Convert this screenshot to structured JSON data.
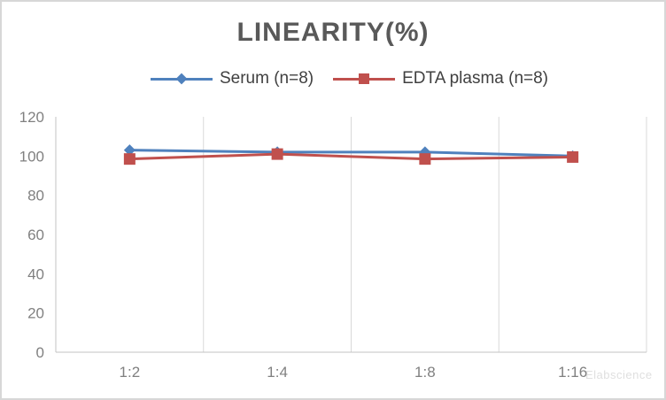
{
  "chart_data": {
    "type": "line",
    "title": "LINEARITY(%)",
    "categories": [
      "1:2",
      "1:4",
      "1:8",
      "1:16"
    ],
    "series": [
      {
        "name": "Serum (n=8)",
        "marker": "diamond",
        "color": "#4F81BD",
        "values": [
          103,
          102,
          102,
          100
        ]
      },
      {
        "name": "EDTA plasma (n=8)",
        "marker": "square",
        "color": "#C0504D",
        "values": [
          98.5,
          101,
          98.5,
          99.5
        ]
      }
    ],
    "xlabel": "",
    "ylabel": "",
    "ylim": [
      0,
      120
    ],
    "yticks": [
      0,
      20,
      40,
      60,
      80,
      100,
      120
    ],
    "grid": "vertical-category-boundaries",
    "legend_position": "top-center"
  },
  "watermark": {
    "text": "Elabscience"
  },
  "colors": {
    "title": "#595959",
    "legend_text": "#404040",
    "tick_labels": "#808080",
    "gridline": "#d9d9d9",
    "axis_line": "#c3c3c3",
    "border": "#d7d7d7",
    "background": "#ffffff",
    "serum": "#4F81BD",
    "edta_plasma": "#C0504D"
  }
}
